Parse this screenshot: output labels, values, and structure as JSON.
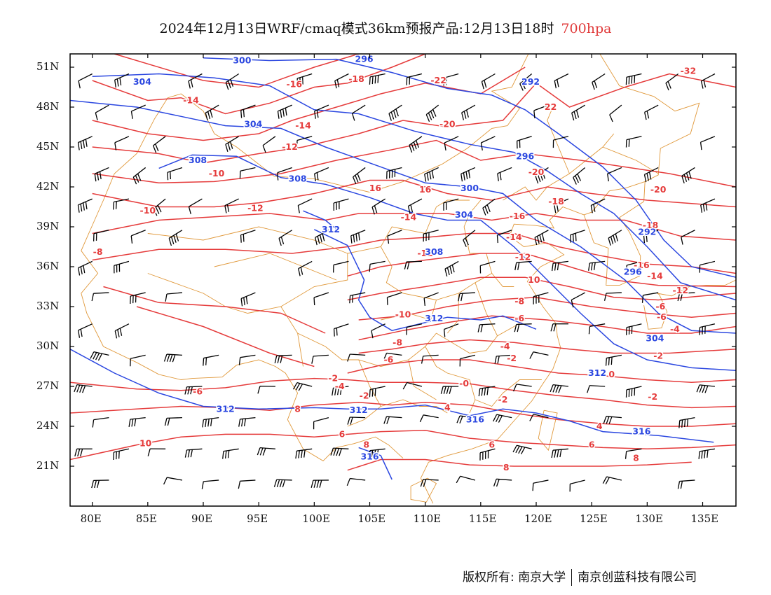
{
  "title": {
    "main": "2024年12月13日WRF/cmaq模式36km预报产品:12月13日18时",
    "level": "700hpa"
  },
  "axes": {
    "lat_labels": [
      "51N",
      "48N",
      "45N",
      "42N",
      "39N",
      "36N",
      "33N",
      "30N",
      "27N",
      "24N",
      "21N"
    ],
    "lon_labels": [
      "80E",
      "85E",
      "90E",
      "95E",
      "100E",
      "105E",
      "110E",
      "115E",
      "120E",
      "125E",
      "130E",
      "135E"
    ]
  },
  "colors": {
    "height_contour": "#2b47e0",
    "temperature_contour": "#e53b3b",
    "boundary": "#e0983a",
    "wind_barb": "#000000"
  },
  "map": {
    "lon_range": [
      78,
      138
    ],
    "lat_range": [
      18,
      52
    ],
    "height_labels": [
      {
        "text": "300",
        "lon": 93.5,
        "lat": 51.5
      },
      {
        "text": "296",
        "lon": 104.5,
        "lat": 51.6
      },
      {
        "text": "304",
        "lon": 84.5,
        "lat": 49.9
      },
      {
        "text": "292",
        "lon": 119.5,
        "lat": 49.9
      },
      {
        "text": "304",
        "lon": 94.5,
        "lat": 46.7
      },
      {
        "text": "296",
        "lon": 119.0,
        "lat": 44.3
      },
      {
        "text": "308",
        "lon": 89.5,
        "lat": 44.0
      },
      {
        "text": "308",
        "lon": 98.5,
        "lat": 42.6
      },
      {
        "text": "300",
        "lon": 114.0,
        "lat": 41.9
      },
      {
        "text": "304",
        "lon": 113.5,
        "lat": 39.9
      },
      {
        "text": "312",
        "lon": 101.5,
        "lat": 38.8
      },
      {
        "text": "308",
        "lon": 110.8,
        "lat": 37.1
      },
      {
        "text": "292",
        "lon": 130.0,
        "lat": 38.6
      },
      {
        "text": "296",
        "lon": 128.7,
        "lat": 35.6
      },
      {
        "text": "312",
        "lon": 110.8,
        "lat": 32.1
      },
      {
        "text": "304",
        "lon": 130.7,
        "lat": 30.6
      },
      {
        "text": "312",
        "lon": 125.5,
        "lat": 28.0
      },
      {
        "text": "312",
        "lon": 92.0,
        "lat": 25.3
      },
      {
        "text": "312",
        "lon": 104.0,
        "lat": 25.2
      },
      {
        "text": "316",
        "lon": 114.5,
        "lat": 24.5
      },
      {
        "text": "316",
        "lon": 129.5,
        "lat": 23.6
      },
      {
        "text": "316",
        "lon": 105.0,
        "lat": 21.7
      }
    ],
    "temp_labels": [
      {
        "text": "-16",
        "lon": 98.2,
        "lat": 49.7
      },
      {
        "text": "-18",
        "lon": 103.8,
        "lat": 50.1
      },
      {
        "text": "-22",
        "lon": 111.2,
        "lat": 50.0
      },
      {
        "text": "-32",
        "lon": 133.7,
        "lat": 50.7
      },
      {
        "text": "-14",
        "lon": 88.9,
        "lat": 48.5
      },
      {
        "text": "-14",
        "lon": 99.0,
        "lat": 46.6
      },
      {
        "text": "-20",
        "lon": 112.0,
        "lat": 46.7
      },
      {
        "text": "22",
        "lon": 121.3,
        "lat": 48.0
      },
      {
        "text": "-12",
        "lon": 97.8,
        "lat": 45.0
      },
      {
        "text": "-10",
        "lon": 91.2,
        "lat": 43.0
      },
      {
        "text": "-20",
        "lon": 120.0,
        "lat": 43.1
      },
      {
        "text": "16",
        "lon": 105.5,
        "lat": 41.9
      },
      {
        "text": "16",
        "lon": 110.0,
        "lat": 41.8
      },
      {
        "text": "-18",
        "lon": 121.8,
        "lat": 40.9
      },
      {
        "text": "-20",
        "lon": 131.0,
        "lat": 41.8
      },
      {
        "text": "-10",
        "lon": 85.0,
        "lat": 40.2
      },
      {
        "text": "-12",
        "lon": 94.7,
        "lat": 40.4
      },
      {
        "text": "-14",
        "lon": 108.5,
        "lat": 39.7
      },
      {
        "text": "-16",
        "lon": 118.3,
        "lat": 39.8
      },
      {
        "text": "-18",
        "lon": 130.3,
        "lat": 39.1
      },
      {
        "text": "-14",
        "lon": 118.0,
        "lat": 38.2
      },
      {
        "text": "-8",
        "lon": 80.5,
        "lat": 37.1
      },
      {
        "text": "-12",
        "lon": 110.0,
        "lat": 37.0
      },
      {
        "text": "-12",
        "lon": 118.8,
        "lat": 36.7
      },
      {
        "text": "-16",
        "lon": 129.5,
        "lat": 36.1
      },
      {
        "text": "10",
        "lon": 119.8,
        "lat": 35.0
      },
      {
        "text": "-14",
        "lon": 130.7,
        "lat": 35.3
      },
      {
        "text": "-12",
        "lon": 133.0,
        "lat": 34.2
      },
      {
        "text": "-8",
        "lon": 118.5,
        "lat": 33.4
      },
      {
        "text": "-6",
        "lon": 131.2,
        "lat": 33.0
      },
      {
        "text": "-6",
        "lon": 131.3,
        "lat": 32.2
      },
      {
        "text": "-10",
        "lon": 108.0,
        "lat": 32.4
      },
      {
        "text": "-6",
        "lon": 118.5,
        "lat": 32.1
      },
      {
        "text": "-4",
        "lon": 132.5,
        "lat": 31.3
      },
      {
        "text": "-8",
        "lon": 107.5,
        "lat": 30.3
      },
      {
        "text": "-4",
        "lon": 117.2,
        "lat": 30.0
      },
      {
        "text": "-6",
        "lon": 106.7,
        "lat": 29.0
      },
      {
        "text": "-2",
        "lon": 117.8,
        "lat": 29.1
      },
      {
        "text": "-2",
        "lon": 131.0,
        "lat": 29.3
      },
      {
        "text": "-2",
        "lon": 101.7,
        "lat": 27.6
      },
      {
        "text": "-4",
        "lon": 102.3,
        "lat": 27.0
      },
      {
        "text": "0",
        "lon": 126.8,
        "lat": 27.9
      },
      {
        "text": "-0",
        "lon": 113.5,
        "lat": 27.2
      },
      {
        "text": "-6",
        "lon": 89.5,
        "lat": 26.6
      },
      {
        "text": "-2",
        "lon": 104.5,
        "lat": 26.3
      },
      {
        "text": "-2",
        "lon": 117.0,
        "lat": 26.0
      },
      {
        "text": "-2",
        "lon": 130.5,
        "lat": 26.2
      },
      {
        "text": "8",
        "lon": 98.5,
        "lat": 25.3
      },
      {
        "text": "4",
        "lon": 112.0,
        "lat": 25.4
      },
      {
        "text": "4",
        "lon": 125.7,
        "lat": 24.0
      },
      {
        "text": "6",
        "lon": 102.5,
        "lat": 23.4
      },
      {
        "text": "8",
        "lon": 104.7,
        "lat": 22.6
      },
      {
        "text": "6",
        "lon": 116.0,
        "lat": 22.6
      },
      {
        "text": "6",
        "lon": 125.0,
        "lat": 22.6
      },
      {
        "text": "8",
        "lon": 129.0,
        "lat": 21.6
      },
      {
        "text": "10",
        "lon": 84.8,
        "lat": 22.7
      },
      {
        "text": "8",
        "lon": 117.3,
        "lat": 20.9
      }
    ]
  },
  "footer": {
    "copyright": "版权所有: 南京大学",
    "company": "南京创蓝科技有限公司"
  }
}
